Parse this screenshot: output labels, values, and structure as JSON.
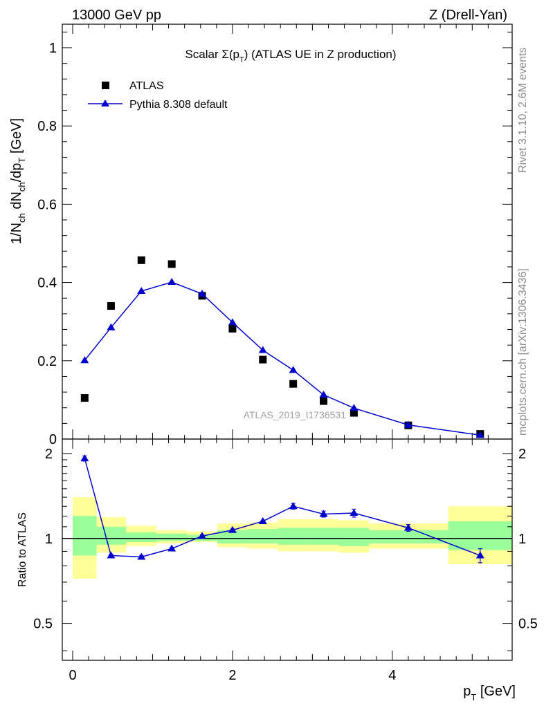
{
  "header": {
    "left": "13000 GeV pp",
    "right": "Z (Drell-Yan)"
  },
  "side_labels": {
    "rivet": "Rivet 3.1.10,  2.6M events",
    "mcplots": "mcplots.cern.ch [arXiv:1306.3436]"
  },
  "chart_data": [
    {
      "type": "scatter",
      "title": "Scalar Σ(p_T) (ATLAS UE in Z production)",
      "title_parts": {
        "prefix": "Scalar ",
        "sigma": "Σ(p",
        "sub": "T",
        "suffix": ") (ATLAS UE in Z production)"
      },
      "ylabel": "1/N_ch dN_ch/dp_T [GeV]",
      "ylabel_parts": {
        "a": "1/N",
        "a_sub": "ch",
        "b": " dN",
        "b_sub": "ch",
        "c": "/dp",
        "c_sub": "T",
        "d": " [GeV]"
      },
      "watermark": "ATLAS_2019_I1736531",
      "xlim": [
        -0.13,
        5.5
      ],
      "ylim": [
        0,
        1.06
      ],
      "yticks": [
        0,
        0.2,
        0.4,
        0.6,
        0.8,
        1
      ],
      "ytick_labels": [
        "0",
        "0.2",
        "0.4",
        "0.6",
        "0.8",
        "1"
      ],
      "legend_position": "top-left",
      "series": [
        {
          "name": "ATLAS",
          "marker": "square",
          "color": "#000000",
          "x": [
            0.15,
            0.48,
            0.86,
            1.24,
            1.62,
            2.0,
            2.38,
            2.76,
            3.14,
            3.52,
            4.2,
            5.1
          ],
          "y": [
            0.105,
            0.34,
            0.457,
            0.447,
            0.366,
            0.282,
            0.203,
            0.141,
            0.097,
            0.067,
            0.035,
            0.013
          ]
        },
        {
          "name": "Pythia 8.308 default",
          "marker": "triangle",
          "color": "#0000cc",
          "x": [
            0.15,
            0.48,
            0.86,
            1.24,
            1.62,
            2.0,
            2.38,
            2.76,
            3.14,
            3.52,
            4.2,
            5.1
          ],
          "y": [
            0.201,
            0.285,
            0.378,
            0.401,
            0.371,
            0.298,
            0.227,
            0.176,
            0.113,
            0.079,
            0.036,
            0.01
          ]
        }
      ]
    },
    {
      "type": "line",
      "ylabel": "Ratio to ATLAS",
      "xlabel": "p_T [GeV]",
      "xlabel_parts": {
        "a": "p",
        "a_sub": "T",
        "b": " [GeV]"
      },
      "xlim": [
        -0.13,
        5.5
      ],
      "ylim": [
        0.37,
        2.25
      ],
      "ylog": true,
      "yticks": [
        0.5,
        1,
        2
      ],
      "ytick_labels": [
        "0.5",
        "1",
        "2"
      ],
      "xticks": [
        0,
        2,
        4
      ],
      "xtick_labels": [
        "0",
        "2",
        "4"
      ],
      "reference_line": 1,
      "bin_edges": [
        0.0,
        0.3,
        0.67,
        1.05,
        1.43,
        1.81,
        2.19,
        2.57,
        2.95,
        3.33,
        3.71,
        4.7,
        5.5
      ],
      "band_yellow": [
        [
          0.72,
          1.4
        ],
        [
          0.89,
          1.19
        ],
        [
          0.94,
          1.11
        ],
        [
          0.96,
          1.07
        ],
        [
          0.97,
          1.06
        ],
        [
          0.93,
          1.13
        ],
        [
          0.92,
          1.14
        ],
        [
          0.9,
          1.17
        ],
        [
          0.9,
          1.17
        ],
        [
          0.89,
          1.16
        ],
        [
          0.92,
          1.13
        ],
        [
          0.81,
          1.3
        ]
      ],
      "band_green": [
        [
          0.87,
          1.2
        ],
        [
          0.95,
          1.1
        ],
        [
          0.97,
          1.05
        ],
        [
          0.98,
          1.04
        ],
        [
          0.98,
          1.03
        ],
        [
          0.96,
          1.07
        ],
        [
          0.96,
          1.08
        ],
        [
          0.95,
          1.09
        ],
        [
          0.95,
          1.09
        ],
        [
          0.94,
          1.09
        ],
        [
          0.96,
          1.07
        ],
        [
          0.91,
          1.15
        ]
      ],
      "series": [
        {
          "name": "Pythia 8.308 default",
          "color": "#0000cc",
          "x": [
            0.15,
            0.48,
            0.86,
            1.24,
            1.62,
            2.0,
            2.38,
            2.76,
            3.14,
            3.52,
            4.2,
            5.1
          ],
          "y": [
            1.92,
            0.87,
            0.86,
            0.92,
            1.02,
            1.07,
            1.15,
            1.3,
            1.22,
            1.23,
            1.09,
            0.87
          ],
          "err": [
            0.04,
            0.01,
            0.01,
            0.01,
            0.01,
            0.01,
            0.01,
            0.03,
            0.03,
            0.04,
            0.03,
            0.05
          ]
        }
      ]
    }
  ]
}
